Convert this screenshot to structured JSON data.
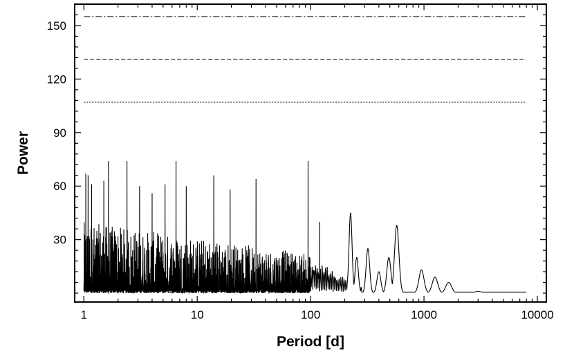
{
  "chart_data": {
    "type": "line",
    "title": "",
    "xlabel": "Period [d]",
    "ylabel": "Power",
    "x_scale": "log",
    "xlim": [
      0.83,
      12000
    ],
    "ylim": [
      -5,
      162
    ],
    "x_ticks": [
      1,
      10,
      100,
      1000,
      10000
    ],
    "x_tick_labels": [
      "1",
      "10",
      "100",
      "1000",
      "10000"
    ],
    "y_ticks": [
      30,
      60,
      90,
      120,
      150
    ],
    "y_tick_labels": [
      "30",
      "60",
      "90",
      "120",
      "150"
    ],
    "grid": false,
    "legend": "none",
    "threshold_lines": [
      {
        "style": "dash-dot",
        "value": 155
      },
      {
        "style": "dashed",
        "value": 131
      },
      {
        "style": "dotted",
        "value": 107
      }
    ],
    "series": [
      {
        "line_color": "#000000",
        "spikes": [
          {
            "period": 1.04,
            "power": 67
          },
          {
            "period": 1.09,
            "power": 66
          },
          {
            "period": 1.17,
            "power": 61
          },
          {
            "period": 1.5,
            "power": 63
          },
          {
            "period": 1.65,
            "power": 74
          },
          {
            "period": 2.4,
            "power": 74
          },
          {
            "period": 3.1,
            "power": 60
          },
          {
            "period": 4.0,
            "power": 56
          },
          {
            "period": 5.2,
            "power": 61
          },
          {
            "period": 6.5,
            "power": 74
          },
          {
            "period": 8.0,
            "power": 60
          },
          {
            "period": 14.0,
            "power": 66
          },
          {
            "period": 19.5,
            "power": 58
          },
          {
            "period": 33,
            "power": 64
          },
          {
            "period": 95,
            "power": 74
          },
          {
            "period": 120,
            "power": 40
          }
        ],
        "peaks": [
          {
            "period": 225,
            "power": 45
          },
          {
            "period": 255,
            "power": 20
          },
          {
            "period": 320,
            "power": 25
          },
          {
            "period": 400,
            "power": 12
          },
          {
            "period": 490,
            "power": 20
          },
          {
            "period": 575,
            "power": 38
          },
          {
            "period": 950,
            "power": 13
          },
          {
            "period": 1250,
            "power": 9
          },
          {
            "period": 1650,
            "power": 6
          },
          {
            "period": 3000,
            "power": 1
          },
          {
            "period": 8000,
            "power": 0.5
          }
        ]
      }
    ]
  }
}
